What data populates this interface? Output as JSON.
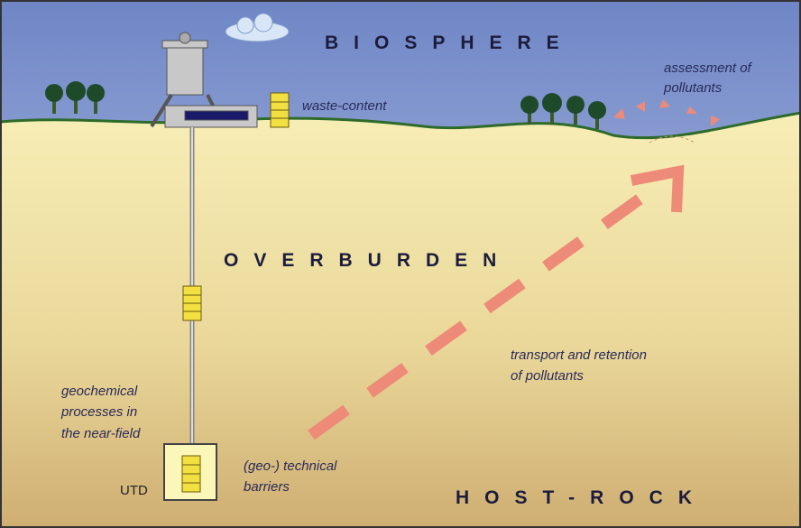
{
  "labels": {
    "biosphere": "BIOSPHERE",
    "waste_content": "waste-content",
    "assessment": [
      "assessment of",
      "pollutants"
    ],
    "overburden": "OVERBURDEN",
    "transport": [
      "transport and retention",
      "of pollutants"
    ],
    "geochemical": [
      "geochemical",
      "processes in",
      "the near-field"
    ],
    "utd": "UTD",
    "barriers": [
      "(geo-) technical",
      "barriers"
    ],
    "host_rock": "HOST-ROCK"
  }
}
